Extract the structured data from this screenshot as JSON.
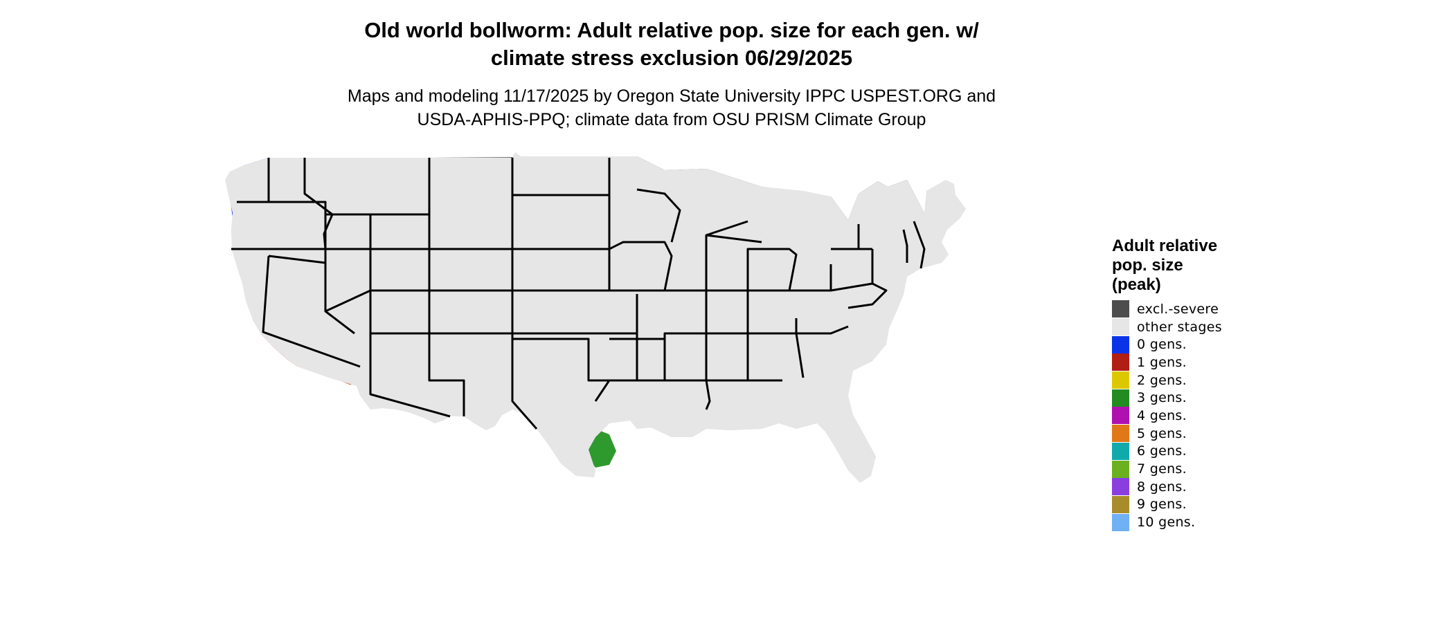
{
  "title": {
    "line1": "Old world bollworm: Adult relative pop. size for each gen. w/",
    "line2": "climate stress exclusion 06/29/2025"
  },
  "subtitle": {
    "line1": "Maps and modeling 11/17/2025 by Oregon State University IPPC USPEST.ORG and",
    "line2": "USDA-APHIS-PPQ; climate data from OSU PRISM Climate Group"
  },
  "legend": {
    "title_lines": [
      "Adult relative",
      "pop. size",
      "(peak)"
    ],
    "items": [
      {
        "label": "excl.-severe",
        "color": "#4d4d4d"
      },
      {
        "label": "other stages",
        "color": "#e6e6e6"
      },
      {
        "label": "0 gens.",
        "color": "#0a33e8"
      },
      {
        "label": "1 gens.",
        "color": "#b01e14"
      },
      {
        "label": "2 gens.",
        "color": "#dcc800"
      },
      {
        "label": "3 gens.",
        "color": "#228b22"
      },
      {
        "label": "4 gens.",
        "color": "#b010b0"
      },
      {
        "label": "5 gens.",
        "color": "#e07818"
      },
      {
        "label": "6 gens.",
        "color": "#10aaaa"
      },
      {
        "label": "7 gens.",
        "color": "#6ab020"
      },
      {
        "label": "8 gens.",
        "color": "#8a3ee0"
      },
      {
        "label": "9 gens.",
        "color": "#a88c2c"
      },
      {
        "label": "10 gens.",
        "color": "#70b0f4"
      }
    ]
  },
  "map_colors": {
    "background": "#e6e6e6",
    "excluded": "#4d4d4d",
    "blue": "#0a33e8",
    "light_blue": "#3aa6ee",
    "red": "#d83a08",
    "yellow": "#f0e000",
    "green": "#2e9a2e",
    "border": "#000000"
  }
}
